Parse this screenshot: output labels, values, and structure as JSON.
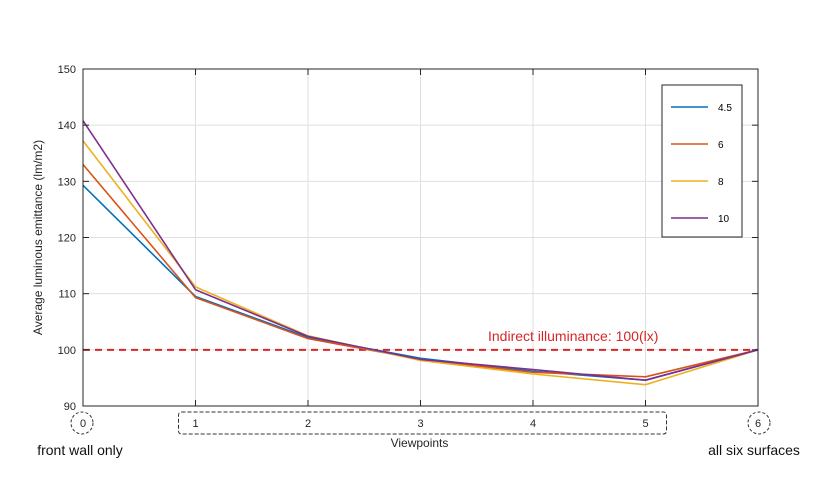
{
  "chart_data": {
    "type": "line",
    "xlabel": "Viewpoints",
    "ylabel": "Average luminous emittance (lm/m2)",
    "xlim": [
      0,
      6
    ],
    "ylim": [
      90,
      150
    ],
    "x_ticks": [
      0,
      1,
      2,
      3,
      4,
      5,
      6
    ],
    "y_ticks": [
      90,
      100,
      110,
      120,
      130,
      140,
      150
    ],
    "grid": true,
    "legend_position": "top-right",
    "x": [
      0,
      1,
      2,
      3,
      4,
      5,
      6
    ],
    "series": [
      {
        "name": "4.5",
        "color": "#0072bd",
        "values": [
          129.3,
          109.5,
          102.2,
          98.5,
          96.2,
          94.6,
          100.0
        ]
      },
      {
        "name": "6",
        "color": "#d95319",
        "values": [
          133.0,
          109.3,
          102.0,
          98.3,
          96.0,
          95.2,
          100.0
        ]
      },
      {
        "name": "8",
        "color": "#edb120",
        "values": [
          137.2,
          111.2,
          102.5,
          98.1,
          95.7,
          93.8,
          100.0
        ]
      },
      {
        "name": "10",
        "color": "#7e2f8e",
        "values": [
          140.8,
          110.7,
          102.4,
          98.3,
          96.5,
          94.6,
          100.0
        ]
      }
    ],
    "reference_line": {
      "value": 100,
      "label": "Indirect illuminance: 100(lx)",
      "color": "#d62728"
    },
    "annotations": {
      "left": "front wall only",
      "right": "all six surfaces"
    }
  }
}
